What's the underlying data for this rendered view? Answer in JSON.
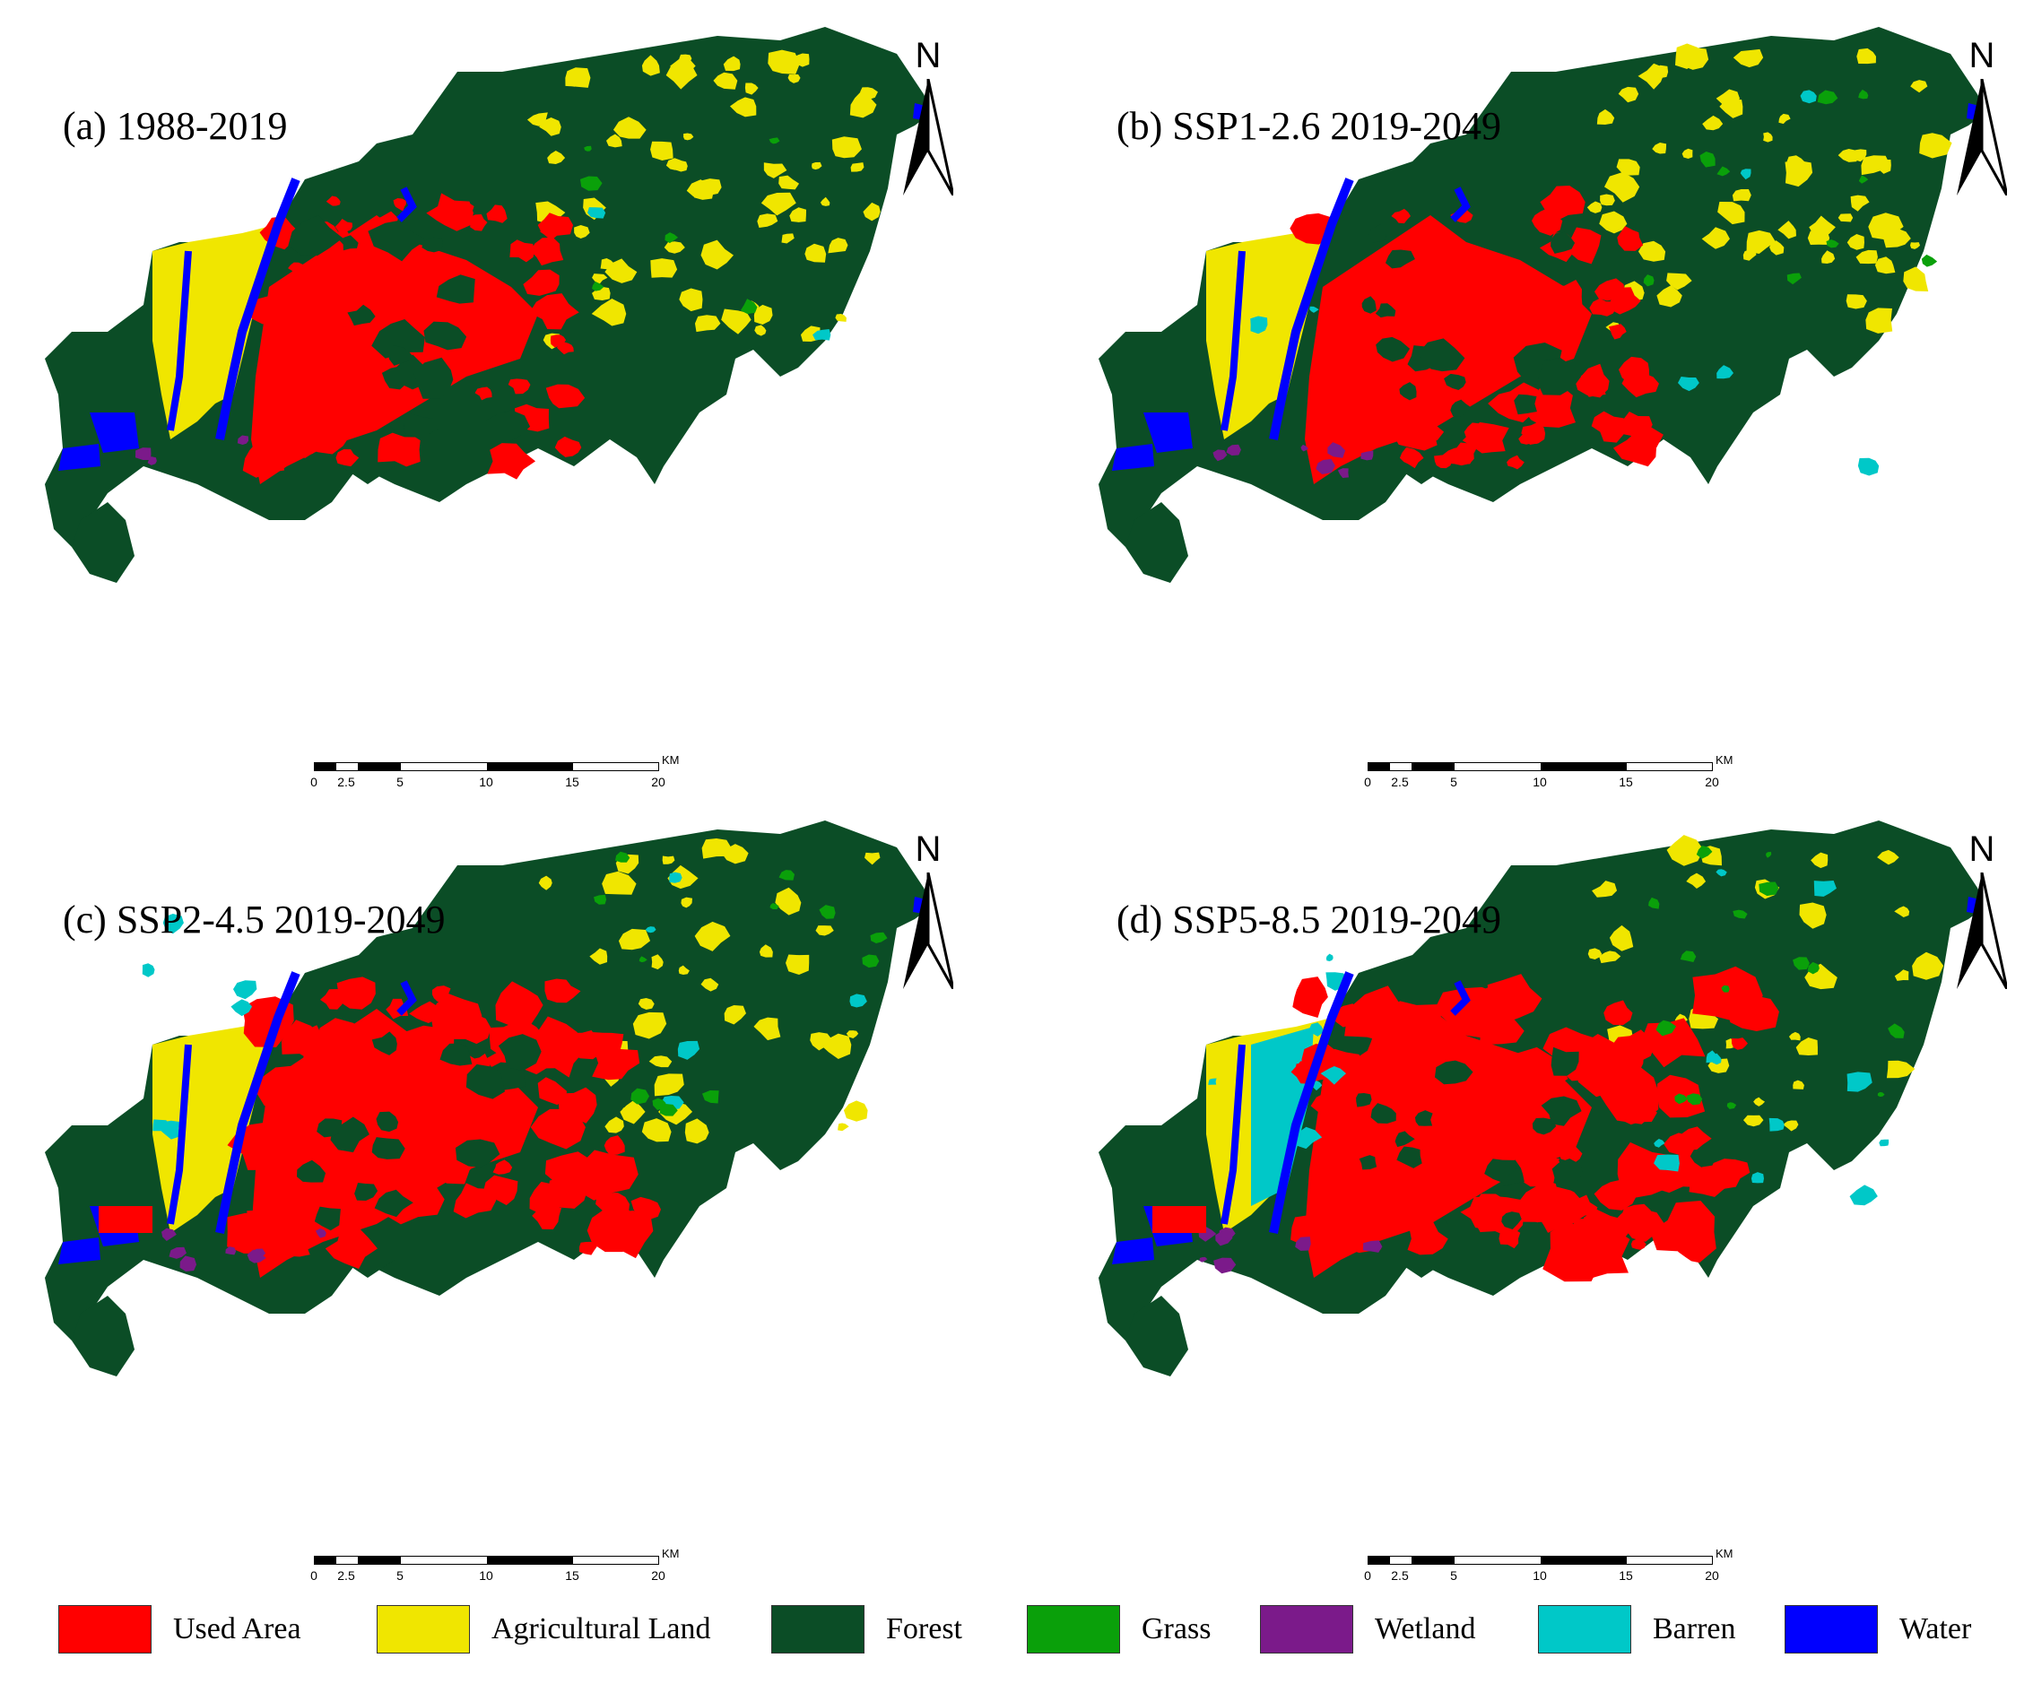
{
  "colors": {
    "used_area": "#ff0000",
    "agricultural": "#f0e600",
    "forest": "#0b4d26",
    "grass": "#0aa00a",
    "wetland": "#7b1a8a",
    "barren": "#00c8c8",
    "water": "#0000ff"
  },
  "panels": [
    {
      "label": "(a) 1988-2019",
      "scenario": "baseline"
    },
    {
      "label": "(b) SSP1-2.6 2019-2049",
      "scenario": "ssp1"
    },
    {
      "label": "(c) SSP2-4.5 2019-2049",
      "scenario": "ssp2"
    },
    {
      "label": "(d) SSP5-8.5 2019-2049",
      "scenario": "ssp5"
    }
  ],
  "north_arrow": {
    "label": "N"
  },
  "scale_bar": {
    "unit": "KM",
    "ticks": [
      "0",
      "2.5",
      "5",
      "10",
      "15",
      "20"
    ]
  },
  "legend": [
    {
      "label": "Used Area",
      "color": "#ff0000"
    },
    {
      "label": "Agricultural Land",
      "color": "#f0e600"
    },
    {
      "label": "Forest",
      "color": "#0b4d26"
    },
    {
      "label": "Grass",
      "color": "#0aa00a"
    },
    {
      "label": "Wetland",
      "color": "#7b1a8a"
    },
    {
      "label": "Barren",
      "color": "#00c8c8"
    },
    {
      "label": "Water",
      "color": "#0000ff"
    }
  ]
}
